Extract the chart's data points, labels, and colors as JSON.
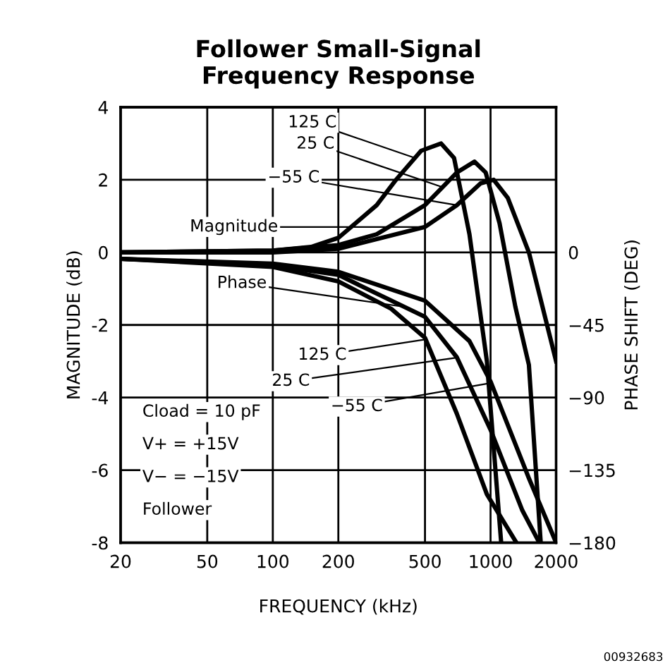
{
  "chart_data": {
    "type": "line",
    "title": "Follower Small-Signal\nFrequency Response",
    "xlabel": "FREQUENCY (kHz)",
    "ylabel": "MAGNITUDE (dB)",
    "y2label": "PHASE SHIFT (DEG)",
    "log": "x",
    "xlim": [
      20,
      2000
    ],
    "xticks": [
      20,
      50,
      100,
      200,
      500,
      1000,
      2000
    ],
    "ylim": [
      -8,
      4
    ],
    "yticks": [
      -8,
      -6,
      -4,
      -2,
      0,
      2,
      4
    ],
    "y2lim": [
      -180,
      90
    ],
    "y2ticks": [
      {
        "value": 0,
        "label": "0"
      },
      {
        "value": -45,
        "label": "−45"
      },
      {
        "value": -90,
        "label": "−90"
      },
      {
        "value": -135,
        "label": "−135"
      },
      {
        "value": -180,
        "label": "−180"
      }
    ],
    "grid": true,
    "marker": "none",
    "line_style": "solid",
    "series": [
      {
        "color": "#000000",
        "x": [
          20,
          100,
          150,
          200,
          300,
          368,
          480,
          593,
          680,
          800,
          962,
          1119
        ],
        "values": [
          0,
          0.05,
          0.15,
          0.4,
          1.3,
          2.0,
          2.8,
          3.0,
          2.6,
          0.5,
          -3,
          -8
        ]
      },
      {
        "color": "#000000",
        "x": [
          20,
          100,
          200,
          300,
          500,
          700,
          844,
          950,
          1100,
          1300,
          1500,
          1700
        ],
        "values": [
          0,
          0.05,
          0.2,
          0.5,
          1.3,
          2.2,
          2.5,
          2.2,
          0.8,
          -1.5,
          -3.1,
          -8
        ]
      },
      {
        "color": "#000000",
        "x": [
          20,
          100,
          200,
          500,
          700,
          900,
          1033,
          1200,
          1500,
          2000
        ],
        "values": [
          0,
          0,
          0.1,
          0.7,
          1.3,
          1.9,
          2.0,
          1.5,
          0,
          -3
        ]
      },
      {
        "color": "#000000",
        "axis": "y2",
        "x": [
          20,
          100,
          200,
          350,
          500,
          700,
          962,
          1315
        ],
        "values": [
          -4,
          -9,
          -18,
          -35,
          -53,
          -100,
          -150,
          -180
        ]
      },
      {
        "color": "#000000",
        "axis": "y2",
        "x": [
          20,
          100,
          200,
          500,
          700,
          1000,
          1400,
          1675
        ],
        "values": [
          -4,
          -8,
          -14,
          -40,
          -65,
          -110,
          -160,
          -180
        ]
      },
      {
        "color": "#000000",
        "axis": "y2",
        "x": [
          20,
          100,
          200,
          500,
          800,
          1000,
          1500,
          2000
        ],
        "values": [
          -4,
          -7,
          -12,
          -30,
          -55,
          -80,
          -140,
          -180
        ]
      }
    ],
    "annotations": [
      {
        "text": "Magnitude",
        "x": 500,
        "y": 0.7
      },
      {
        "text": "125 C",
        "x": 450,
        "y": 2.6
      },
      {
        "text": "25 C",
        "x": 600,
        "y": 1.8
      },
      {
        "text": "−55 C",
        "x": 700,
        "y": 1.3
      },
      {
        "text": "Phase",
        "x": 400,
        "y": -1.5
      },
      {
        "text": "125 C",
        "x": 500,
        "y": -2.4
      },
      {
        "text": "25 C",
        "x": 700,
        "y": -2.9
      },
      {
        "text": "−55 C",
        "x": 1000,
        "y": -3.6
      },
      "Cload = 10 pF",
      "V+ = +15V",
      "V− = −15V",
      "Follower",
      "00932683"
    ]
  }
}
